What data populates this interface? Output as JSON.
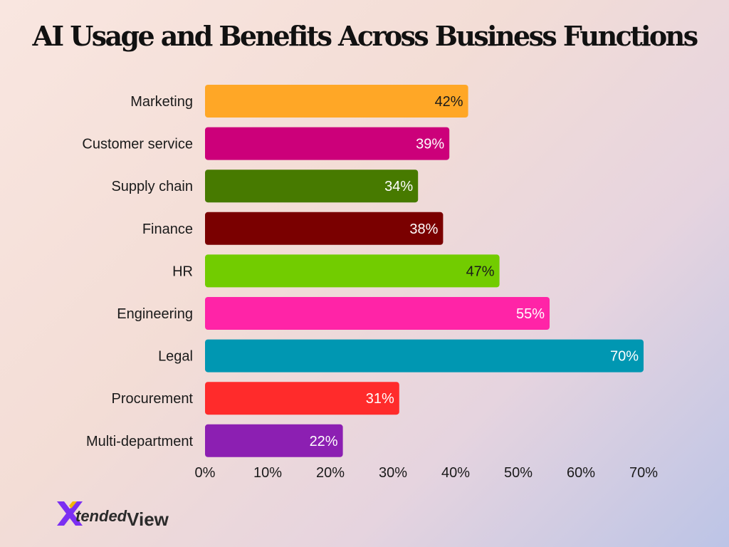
{
  "title": "AI Usage and Benefits Across Business Functions",
  "logo": {
    "text_main": "tended",
    "text_sub": "View",
    "colors": {
      "x": "#7b2ff2",
      "accent": "#f2b705"
    }
  },
  "chart_data": {
    "type": "bar",
    "orientation": "horizontal",
    "title": "AI Usage and Benefits Across Business Functions",
    "xlabel": "",
    "ylabel": "",
    "xlim": [
      0,
      70
    ],
    "ticks": [
      "0%",
      "10%",
      "20%",
      "30%",
      "40%",
      "50%",
      "60%",
      "70%"
    ],
    "tick_values": [
      0,
      10,
      20,
      30,
      40,
      50,
      60,
      70
    ],
    "grid": false,
    "categories": [
      "Marketing",
      "Customer service",
      "Supply chain",
      "Finance",
      "HR",
      "Engineering",
      "Legal",
      "Procurement",
      "Multi-department"
    ],
    "values": [
      42,
      39,
      34,
      38,
      47,
      55,
      70,
      31,
      22
    ],
    "value_labels": [
      "42%",
      "39%",
      "34%",
      "38%",
      "47%",
      "55%",
      "70%",
      "31%",
      "22%"
    ],
    "colors": [
      "#ffa726",
      "#cc007a",
      "#477a00",
      "#7a0000",
      "#72cc00",
      "#ff24a7",
      "#0097b2",
      "#ff2b2b",
      "#8c1fb2"
    ],
    "label_colors": [
      "#1a1a1a",
      "#ffffff",
      "#ffffff",
      "#ffffff",
      "#1a1a1a",
      "#ffffff",
      "#ffffff",
      "#ffffff",
      "#ffffff"
    ]
  }
}
